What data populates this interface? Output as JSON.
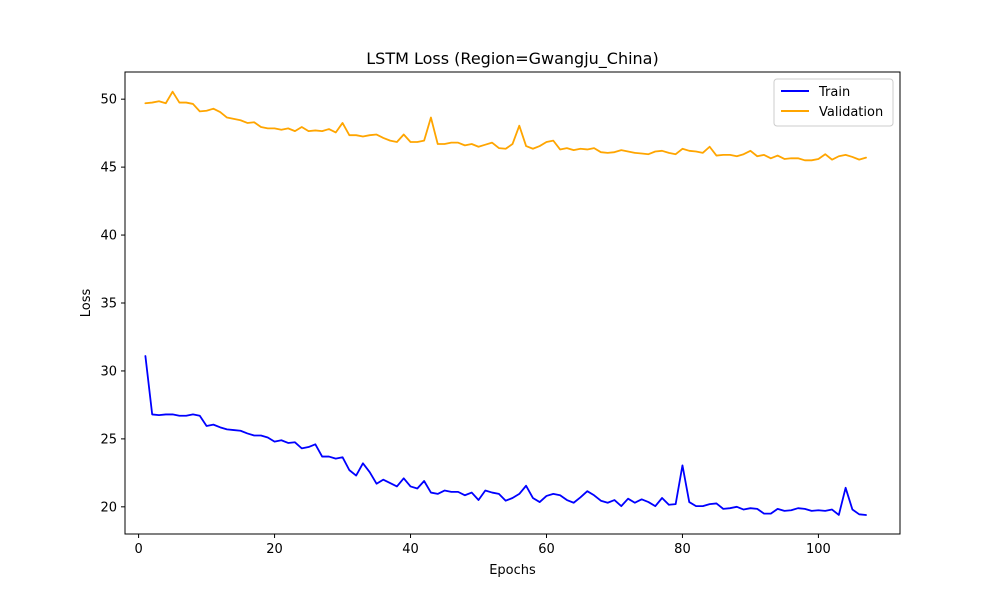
{
  "chart_data": {
    "type": "line",
    "title": "LSTM Loss (Region=Gwangju_China)",
    "xlabel": "Epochs",
    "ylabel": "Loss",
    "xlim": [
      -2,
      112
    ],
    "ylim": [
      18,
      52
    ],
    "xticks": [
      0,
      20,
      40,
      60,
      80,
      100
    ],
    "yticks": [
      20,
      25,
      30,
      35,
      40,
      45,
      50
    ],
    "grid": false,
    "legend_position": "top-right",
    "x": [
      1,
      2,
      3,
      4,
      5,
      6,
      7,
      8,
      9,
      10,
      11,
      12,
      13,
      14,
      15,
      16,
      17,
      18,
      19,
      20,
      21,
      22,
      23,
      24,
      25,
      26,
      27,
      28,
      29,
      30,
      31,
      32,
      33,
      34,
      35,
      36,
      37,
      38,
      39,
      40,
      41,
      42,
      43,
      44,
      45,
      46,
      47,
      48,
      49,
      50,
      51,
      52,
      53,
      54,
      55,
      56,
      57,
      58,
      59,
      60,
      61,
      62,
      63,
      64,
      65,
      66,
      67,
      68,
      69,
      70,
      71,
      72,
      73,
      74,
      75,
      76,
      77,
      78,
      79,
      80,
      81,
      82,
      83,
      84,
      85,
      86,
      87,
      88,
      89,
      90,
      91,
      92,
      93,
      94,
      95,
      96,
      97,
      98,
      99,
      100,
      101,
      102,
      103,
      104,
      105,
      106,
      107
    ],
    "series": [
      {
        "name": "Train",
        "color": "#0000ff",
        "values": [
          31.1,
          26.8,
          26.75,
          26.8,
          26.8,
          26.7,
          26.7,
          26.8,
          26.7,
          25.95,
          26.05,
          25.85,
          25.7,
          25.65,
          25.6,
          25.4,
          25.25,
          25.25,
          25.1,
          24.8,
          24.9,
          24.7,
          24.75,
          24.3,
          24.4,
          24.6,
          23.7,
          23.7,
          23.55,
          23.65,
          22.7,
          22.3,
          23.2,
          22.55,
          21.7,
          22.0,
          21.75,
          21.5,
          22.1,
          21.5,
          21.35,
          21.9,
          21.05,
          20.95,
          21.2,
          21.1,
          21.1,
          20.85,
          21.05,
          20.5,
          21.2,
          21.05,
          20.95,
          20.45,
          20.65,
          20.95,
          21.55,
          20.65,
          20.35,
          20.8,
          20.95,
          20.85,
          20.5,
          20.3,
          20.7,
          21.15,
          20.85,
          20.45,
          20.3,
          20.5,
          20.05,
          20.6,
          20.3,
          20.55,
          20.35,
          20.05,
          20.65,
          20.15,
          20.2,
          23.05,
          20.35,
          20.05,
          20.05,
          20.2,
          20.25,
          19.85,
          19.9,
          20.0,
          19.8,
          19.9,
          19.85,
          19.5,
          19.5,
          19.85,
          19.7,
          19.75,
          19.9,
          19.85,
          19.7,
          19.75,
          19.7,
          19.8,
          19.4,
          21.4,
          19.8,
          19.45,
          19.4
        ]
      },
      {
        "name": "Validation",
        "color": "#ffa500",
        "values": [
          49.7,
          49.75,
          49.85,
          49.7,
          50.55,
          49.75,
          49.75,
          49.65,
          49.1,
          49.15,
          49.3,
          49.05,
          48.65,
          48.55,
          48.45,
          48.25,
          48.3,
          47.95,
          47.85,
          47.85,
          47.75,
          47.85,
          47.65,
          47.95,
          47.65,
          47.7,
          47.65,
          47.8,
          47.55,
          48.25,
          47.35,
          47.35,
          47.25,
          47.35,
          47.4,
          47.15,
          46.95,
          46.85,
          47.4,
          46.85,
          46.85,
          46.95,
          48.65,
          46.7,
          46.7,
          46.8,
          46.8,
          46.6,
          46.7,
          46.5,
          46.65,
          46.8,
          46.4,
          46.35,
          46.7,
          48.05,
          46.55,
          46.35,
          46.55,
          46.85,
          46.95,
          46.3,
          46.4,
          46.25,
          46.35,
          46.3,
          46.4,
          46.1,
          46.05,
          46.1,
          46.25,
          46.15,
          46.05,
          46.0,
          45.95,
          46.15,
          46.2,
          46.05,
          45.95,
          46.35,
          46.2,
          46.15,
          46.05,
          46.5,
          45.85,
          45.9,
          45.9,
          45.8,
          45.95,
          46.2,
          45.8,
          45.9,
          45.65,
          45.85,
          45.6,
          45.65,
          45.65,
          45.5,
          45.5,
          45.6,
          45.95,
          45.55,
          45.8,
          45.9,
          45.75,
          45.55,
          45.7
        ]
      }
    ]
  }
}
